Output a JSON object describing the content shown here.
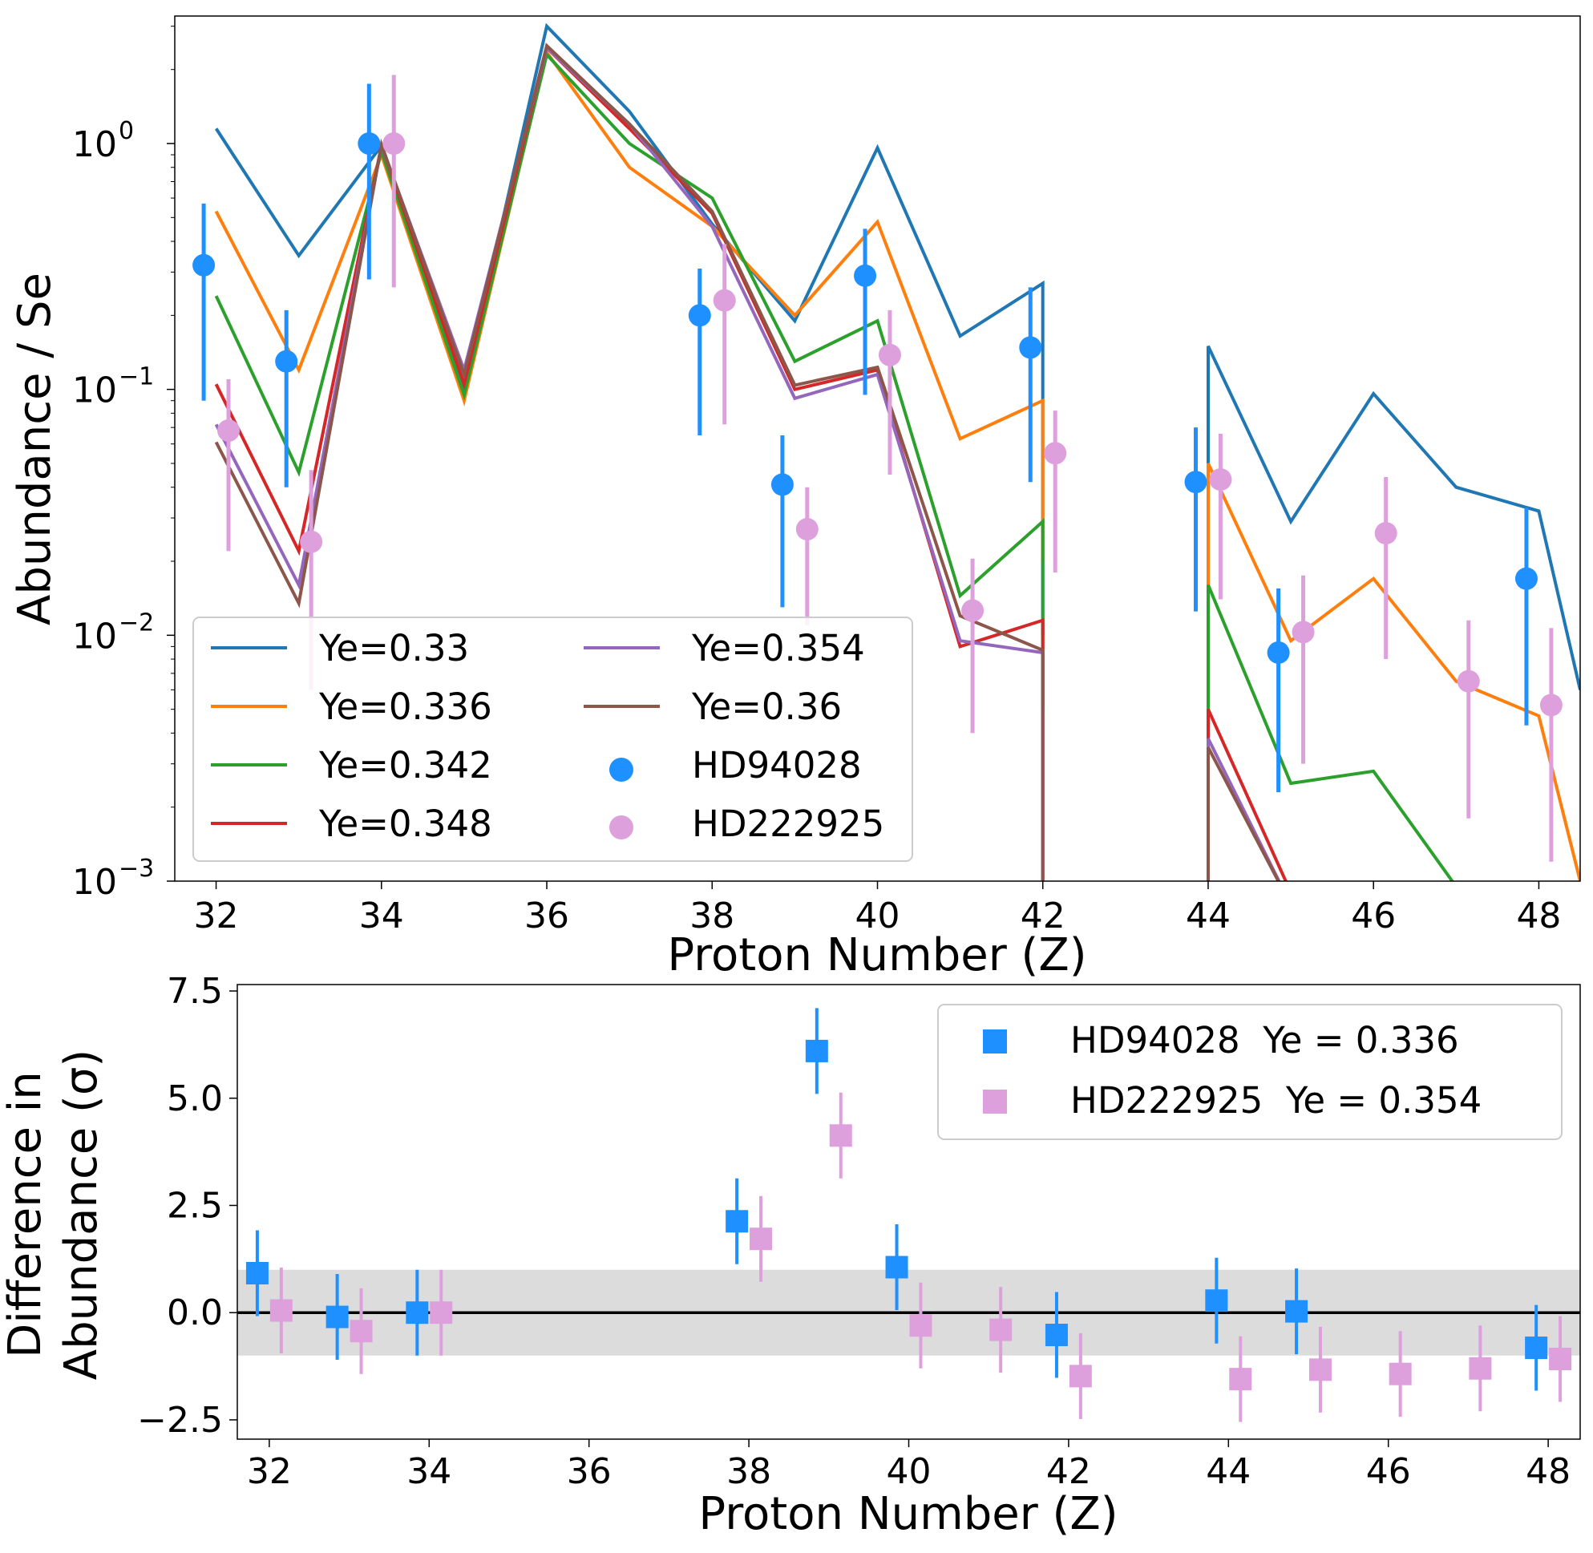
{
  "chart_data": [
    {
      "type": "line",
      "yscale": "log",
      "xlabel": "Proton Number (Z)",
      "ylabel": "Abundance / Se",
      "xlim": [
        31.5,
        48.5
      ],
      "ylim": [
        0.001,
        3.3
      ],
      "xticks": [
        32,
        34,
        36,
        38,
        40,
        42,
        44,
        46,
        48
      ],
      "xtick_labels": [
        "32",
        "34",
        "36",
        "38",
        "40",
        "42",
        "44",
        "46",
        "48"
      ],
      "yticks": [
        {
          "value": 1,
          "base": "10",
          "exp": "0"
        },
        {
          "value": 0.1,
          "base": "10",
          "exp": "−1"
        },
        {
          "value": 0.01,
          "base": "10",
          "exp": "−2"
        },
        {
          "value": 0.001,
          "base": "10",
          "exp": "−3"
        }
      ],
      "legend_position": "lower-left",
      "series": [
        {
          "name": "Ye=0.33",
          "color": "#1f77b4",
          "points": [
            [
              32,
              1.15
            ],
            [
              33,
              0.35
            ],
            [
              34,
              0.98
            ],
            [
              35,
              0.1
            ],
            [
              36,
              3.0
            ],
            [
              37,
              1.35
            ],
            [
              38,
              0.47
            ],
            [
              39,
              0.19
            ],
            [
              40,
              0.96
            ],
            [
              41,
              0.165
            ],
            [
              42,
              0.27
            ],
            [
              42,
              0.01
            ],
            null,
            [
              44,
              0.0001
            ],
            [
              44,
              0.15
            ],
            [
              45,
              0.029
            ],
            [
              46,
              0.096
            ],
            [
              47,
              0.04
            ],
            [
              48,
              0.032
            ],
            [
              48.5,
              0.006
            ]
          ]
        },
        {
          "name": "Ye=0.336",
          "color": "#ff7f0e",
          "points": [
            [
              32,
              0.53
            ],
            [
              33,
              0.12
            ],
            [
              34,
              0.9
            ],
            [
              35,
              0.09
            ],
            [
              36,
              2.35
            ],
            [
              37,
              0.8
            ],
            [
              38,
              0.46
            ],
            [
              39,
              0.2
            ],
            [
              40,
              0.48
            ],
            [
              41,
              0.063
            ],
            [
              42,
              0.09
            ],
            [
              42,
              0.02
            ],
            null,
            [
              44,
              0.0001
            ],
            [
              44,
              0.05
            ],
            [
              45,
              0.0095
            ],
            [
              46,
              0.017
            ],
            [
              47,
              0.0065
            ],
            [
              48,
              0.0047
            ],
            [
              48.5,
              0.001
            ]
          ]
        },
        {
          "name": "Ye=0.342",
          "color": "#2ca02c",
          "points": [
            [
              32,
              0.24
            ],
            [
              33,
              0.046
            ],
            [
              34,
              0.93
            ],
            [
              35,
              0.095
            ],
            [
              36,
              2.3
            ],
            [
              37,
              1.0
            ],
            [
              38,
              0.6
            ],
            [
              39,
              0.13
            ],
            [
              40,
              0.19
            ],
            [
              41,
              0.0145
            ],
            [
              42,
              0.029
            ],
            [
              42,
              0.005
            ],
            null,
            [
              44,
              0.004
            ],
            [
              44,
              0.016
            ],
            [
              45,
              0.0025
            ],
            [
              46,
              0.0028
            ],
            [
              47,
              0.00095
            ],
            [
              47.3,
              0.0007
            ]
          ]
        },
        {
          "name": "Ye=0.348",
          "color": "#d62728",
          "points": [
            [
              32,
              0.105
            ],
            [
              33,
              0.022
            ],
            [
              34,
              0.98
            ],
            [
              35,
              0.105
            ],
            [
              36,
              2.45
            ],
            [
              37,
              1.15
            ],
            [
              38,
              0.52
            ],
            [
              39,
              0.1
            ],
            [
              40,
              0.12
            ],
            [
              41,
              0.009
            ],
            [
              42,
              0.0115
            ],
            [
              42,
              0.0005
            ],
            null,
            [
              44,
              0.0005
            ],
            [
              44,
              0.005
            ],
            [
              45,
              0.0009
            ],
            [
              45.5,
              0.0005
            ]
          ]
        },
        {
          "name": "Ye=0.354",
          "color": "#9467bd",
          "points": [
            [
              32,
              0.072
            ],
            [
              33,
              0.016
            ],
            [
              34,
              0.98
            ],
            [
              35,
              0.12
            ],
            [
              36,
              2.45
            ],
            [
              37,
              1.2
            ],
            [
              38,
              0.46
            ],
            [
              39,
              0.092
            ],
            [
              40,
              0.115
            ],
            [
              41,
              0.0095
            ],
            [
              42,
              0.0085
            ],
            [
              42,
              0.0004
            ],
            null,
            [
              44,
              0.0004
            ],
            [
              44,
              0.0038
            ],
            [
              45,
              0.0008
            ],
            [
              45.5,
              0.0005
            ]
          ]
        },
        {
          "name": "Ye=0.36",
          "color": "#8c564b",
          "points": [
            [
              32,
              0.061
            ],
            [
              33,
              0.0135
            ],
            [
              34,
              0.99
            ],
            [
              35,
              0.115
            ],
            [
              36,
              2.5
            ],
            [
              37,
              1.2
            ],
            [
              38,
              0.53
            ],
            [
              39,
              0.104
            ],
            [
              40,
              0.123
            ],
            [
              41,
              0.012
            ],
            [
              42,
              0.0087
            ],
            [
              42,
              0.0003
            ],
            null,
            [
              44,
              0.0003
            ],
            [
              44,
              0.0035
            ],
            [
              45,
              0.0008
            ],
            [
              45.5,
              0.0005
            ]
          ]
        }
      ],
      "scatter": [
        {
          "name": "HD94028",
          "color": "#1e90ff",
          "points": [
            {
              "x": 32,
              "y": 0.32,
              "lo": 0.09,
              "hi": 0.57
            },
            {
              "x": 33,
              "y": 0.13,
              "lo": 0.04,
              "hi": 0.21
            },
            {
              "x": 34,
              "y": 1.0,
              "lo": 0.28,
              "hi": 1.75
            },
            {
              "x": 38,
              "y": 0.2,
              "lo": 0.065,
              "hi": 0.31
            },
            {
              "x": 39,
              "y": 0.041,
              "lo": 0.013,
              "hi": 0.065
            },
            {
              "x": 40,
              "y": 0.29,
              "lo": 0.095,
              "hi": 0.45
            },
            {
              "x": 42,
              "y": 0.148,
              "lo": 0.042,
              "hi": 0.26
            },
            {
              "x": 44,
              "y": 0.042,
              "lo": 0.0125,
              "hi": 0.07
            },
            {
              "x": 45,
              "y": 0.0085,
              "lo": 0.0023,
              "hi": 0.0155
            },
            {
              "x": 48,
              "y": 0.017,
              "lo": 0.0043,
              "hi": 0.033
            }
          ]
        },
        {
          "name": "HD222925",
          "color": "#dda0dd",
          "points": [
            {
              "x": 32,
              "y": 0.068,
              "lo": 0.022,
              "hi": 0.11
            },
            {
              "x": 33,
              "y": 0.024,
              "lo": 0.006,
              "hi": 0.047
            },
            {
              "x": 34,
              "y": 1.0,
              "lo": 0.26,
              "hi": 1.9
            },
            {
              "x": 38,
              "y": 0.23,
              "lo": 0.072,
              "hi": 0.39
            },
            {
              "x": 39,
              "y": 0.027,
              "lo": 0.011,
              "hi": 0.04
            },
            {
              "x": 40,
              "y": 0.138,
              "lo": 0.045,
              "hi": 0.21
            },
            {
              "x": 41,
              "y": 0.0126,
              "lo": 0.004,
              "hi": 0.0205
            },
            {
              "x": 42,
              "y": 0.055,
              "lo": 0.018,
              "hi": 0.082
            },
            {
              "x": 44,
              "y": 0.043,
              "lo": 0.014,
              "hi": 0.066
            },
            {
              "x": 45,
              "y": 0.0103,
              "lo": 0.003,
              "hi": 0.0175
            },
            {
              "x": 46,
              "y": 0.026,
              "lo": 0.008,
              "hi": 0.044
            },
            {
              "x": 47,
              "y": 0.0065,
              "lo": 0.0018,
              "hi": 0.0115
            },
            {
              "x": 48,
              "y": 0.0052,
              "lo": 0.0012,
              "hi": 0.0107
            }
          ]
        }
      ]
    },
    {
      "type": "scatter",
      "xlabel": "Proton Number (Z)",
      "ylabel_line1": "Difference in",
      "ylabel_line2": "Abundance (σ)",
      "xlim": [
        31.6,
        48.4
      ],
      "ylim": [
        -2.95,
        7.65
      ],
      "xticks": [
        32,
        34,
        36,
        38,
        40,
        42,
        44,
        46,
        48
      ],
      "xtick_labels": [
        "32",
        "34",
        "36",
        "38",
        "40",
        "42",
        "44",
        "46",
        "48"
      ],
      "yticks": [
        7.5,
        5.0,
        2.5,
        0.0,
        -2.5
      ],
      "ytick_labels": [
        "7.5",
        "5.0",
        "2.5",
        "0.0",
        "−2.5"
      ],
      "band": [
        -1,
        1
      ],
      "zero_line": 0,
      "legend_position": "top-right",
      "series": [
        {
          "name": "HD94028  Ye = 0.336",
          "color": "#1e90ff",
          "points": [
            {
              "x": 32,
              "y": 0.92
            },
            {
              "x": 33,
              "y": -0.1
            },
            {
              "x": 34,
              "y": 0.0
            },
            {
              "x": 38,
              "y": 2.13
            },
            {
              "x": 39,
              "y": 6.1
            },
            {
              "x": 40,
              "y": 1.06
            },
            {
              "x": 42,
              "y": -0.52
            },
            {
              "x": 44,
              "y": 0.28
            },
            {
              "x": 45,
              "y": 0.03
            },
            {
              "x": 48,
              "y": -0.82
            }
          ]
        },
        {
          "name": "HD222925  Ye = 0.354",
          "color": "#dda0dd",
          "points": [
            {
              "x": 32,
              "y": 0.05
            },
            {
              "x": 33,
              "y": -0.43
            },
            {
              "x": 34,
              "y": 0.0
            },
            {
              "x": 38,
              "y": 1.72
            },
            {
              "x": 39,
              "y": 4.13
            },
            {
              "x": 40,
              "y": -0.3
            },
            {
              "x": 41,
              "y": -0.4
            },
            {
              "x": 42,
              "y": -1.48
            },
            {
              "x": 44,
              "y": -1.55
            },
            {
              "x": 45,
              "y": -1.33
            },
            {
              "x": 46,
              "y": -1.43
            },
            {
              "x": 47,
              "y": -1.3
            },
            {
              "x": 48,
              "y": -1.08
            }
          ]
        }
      ]
    }
  ]
}
